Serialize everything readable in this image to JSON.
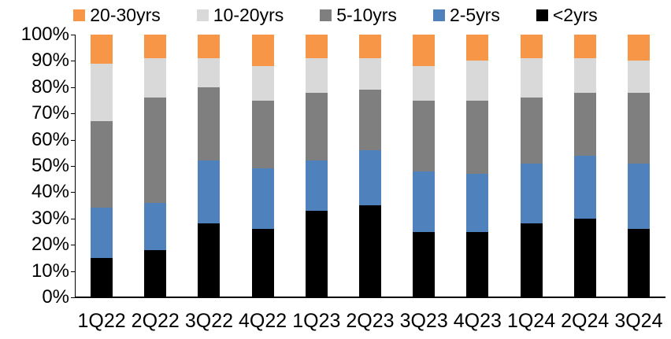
{
  "chart_data": {
    "type": "bar",
    "stacked": true,
    "stack_unit": "percent",
    "title": "",
    "xlabel": "",
    "ylabel": "",
    "categories": [
      "1Q22",
      "2Q22",
      "3Q22",
      "4Q22",
      "1Q23",
      "2Q23",
      "3Q23",
      "4Q23",
      "1Q24",
      "2Q24",
      "3Q24"
    ],
    "series": [
      {
        "name": "<2yrs",
        "color": "#000000",
        "values": [
          15,
          18,
          28,
          26,
          33,
          35,
          25,
          25,
          28,
          30,
          26
        ]
      },
      {
        "name": "2-5yrs",
        "color": "#4F81BD",
        "values": [
          19,
          18,
          24,
          23,
          19,
          21,
          23,
          22,
          23,
          24,
          25
        ]
      },
      {
        "name": "5-10yrs",
        "color": "#7F7F7F",
        "values": [
          33,
          40,
          28,
          26,
          26,
          23,
          27,
          28,
          25,
          24,
          27
        ]
      },
      {
        "name": "10-20yrs",
        "color": "#D9D9D9",
        "values": [
          22,
          15,
          11,
          13,
          13,
          12,
          13,
          15,
          15,
          13,
          12
        ]
      },
      {
        "name": "20-30yrs",
        "color": "#F79646",
        "values": [
          11,
          9,
          9,
          12,
          9,
          9,
          12,
          10,
          9,
          9,
          10
        ]
      }
    ],
    "legend": {
      "position": "top",
      "items": [
        {
          "label": "20-30yrs",
          "color": "#F79646"
        },
        {
          "label": "10-20yrs",
          "color": "#D9D9D9"
        },
        {
          "label": "5-10yrs",
          "color": "#7F7F7F"
        },
        {
          "label": "2-5yrs",
          "color": "#4F81BD"
        },
        {
          "label": "<2yrs",
          "color": "#000000"
        }
      ]
    },
    "y_axis": {
      "min": 0,
      "max": 100,
      "ticks": [
        0,
        10,
        20,
        30,
        40,
        50,
        60,
        70,
        80,
        90,
        100
      ],
      "tick_labels": [
        "0%",
        "10%",
        "20%",
        "30%",
        "40%",
        "50%",
        "60%",
        "70%",
        "80%",
        "90%",
        "100%"
      ],
      "grid": false
    }
  },
  "colors": {
    "background": "#ffffff",
    "axis": "#000000",
    "text": "#000000"
  }
}
